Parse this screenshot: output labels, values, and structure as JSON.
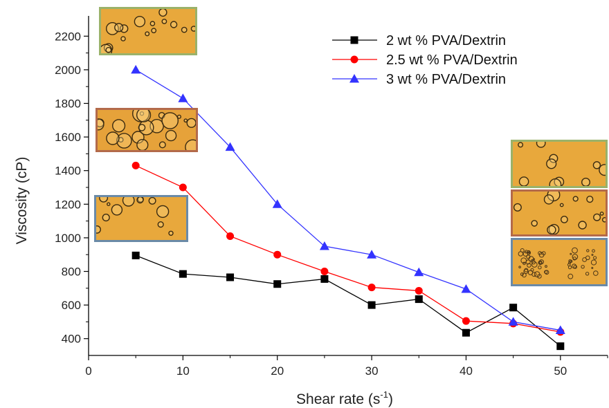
{
  "chart_data": {
    "type": "line",
    "title": "",
    "xlabel": "Shear rate (s",
    "xlabel_sup": "-1",
    "xlabel_close": ")",
    "ylabel": "Viscosity (cP)",
    "xlim": [
      0,
      55
    ],
    "ylim": [
      300,
      2300
    ],
    "xticks": [
      0,
      10,
      20,
      30,
      40,
      50
    ],
    "yticks": [
      400,
      600,
      800,
      1000,
      1200,
      1400,
      1600,
      1800,
      2000,
      2200
    ],
    "grid": false,
    "legend_position": "top-right",
    "x": [
      5,
      10,
      15,
      20,
      25,
      30,
      35,
      40,
      45,
      50
    ],
    "series": [
      {
        "name": "2 wt %  PVA/Dextrin",
        "color": "#000000",
        "marker": "square",
        "values": [
          895,
          785,
          765,
          725,
          755,
          600,
          635,
          435,
          585,
          355
        ]
      },
      {
        "name": "2.5 wt %  PVA/Dextrin",
        "color": "#ff0000",
        "marker": "circle",
        "values": [
          1430,
          1300,
          1010,
          900,
          800,
          705,
          685,
          505,
          490,
          440
        ]
      },
      {
        "name": "3 wt % PVA/Dextrin",
        "color": "#3333ff",
        "marker": "triangle",
        "values": [
          2000,
          1830,
          1540,
          1200,
          950,
          900,
          795,
          695,
          500,
          450
        ]
      }
    ]
  },
  "micrographs": [
    {
      "id": "top-left",
      "border": "#9ab26a"
    },
    {
      "id": "mid-left",
      "border": "#b36a4a"
    },
    {
      "id": "low-left",
      "border": "#6a8aa8"
    },
    {
      "id": "right-1",
      "border": "#9ab26a"
    },
    {
      "id": "right-2",
      "border": "#b36a4a"
    },
    {
      "id": "right-3",
      "border": "#6a8aa8"
    }
  ]
}
